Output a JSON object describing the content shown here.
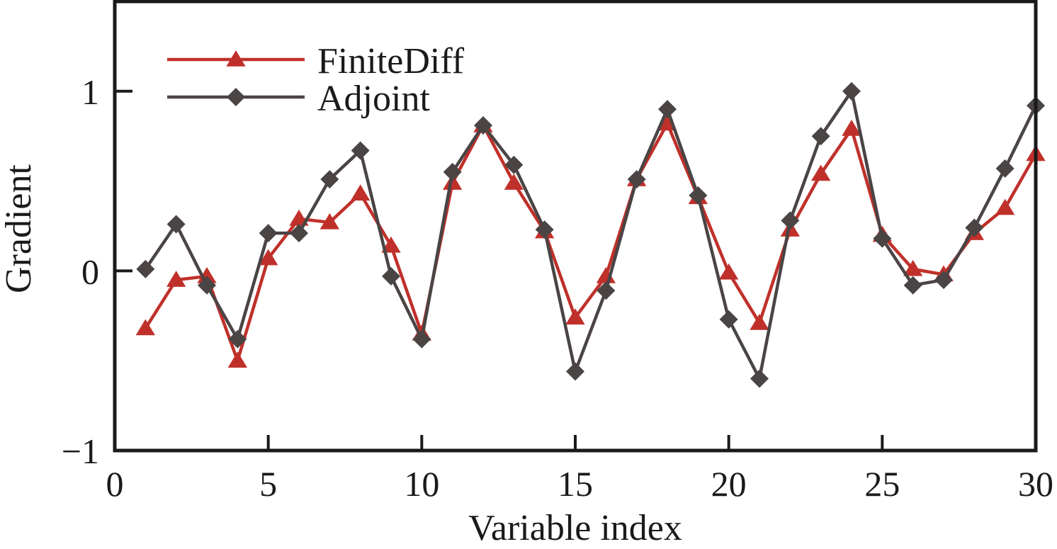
{
  "chart_data": {
    "type": "line",
    "title": "",
    "xlabel": "Variable index",
    "ylabel": "Gradient",
    "xlim": [
      0,
      30
    ],
    "ylim": [
      -1,
      1.5
    ],
    "xticks": [
      0,
      5,
      10,
      15,
      20,
      25,
      30
    ],
    "xtick_labels": [
      "0",
      "5",
      "10",
      "15",
      "20",
      "25",
      "30"
    ],
    "yticks": [
      -1,
      0,
      1
    ],
    "ytick_labels": [
      "−1",
      "0",
      "1"
    ],
    "grid": false,
    "legend_position": "top-left",
    "x": [
      1,
      2,
      3,
      4,
      5,
      6,
      7,
      8,
      9,
      10,
      11,
      12,
      13,
      14,
      15,
      16,
      17,
      18,
      19,
      20,
      21,
      22,
      23,
      24,
      25,
      26,
      27,
      28,
      29,
      30
    ],
    "series": [
      {
        "name": "FiniteDiff",
        "color": "#c0302a",
        "marker": "triangle",
        "values": [
          -0.32,
          -0.05,
          -0.03,
          -0.5,
          0.07,
          0.29,
          0.27,
          0.43,
          0.14,
          -0.35,
          0.49,
          0.81,
          0.49,
          0.22,
          -0.26,
          -0.03,
          0.51,
          0.82,
          0.41,
          -0.01,
          -0.29,
          0.23,
          0.54,
          0.79,
          0.2,
          0.01,
          -0.02,
          0.21,
          0.35,
          0.65
        ]
      },
      {
        "name": "Adjoint",
        "color": "#4a4444",
        "marker": "diamond",
        "values": [
          0.01,
          0.26,
          -0.08,
          -0.38,
          0.21,
          0.21,
          0.51,
          0.67,
          -0.03,
          -0.38,
          0.55,
          0.81,
          0.59,
          0.23,
          -0.56,
          -0.11,
          0.51,
          0.9,
          0.42,
          -0.27,
          -0.6,
          0.28,
          0.75,
          1.0,
          0.18,
          -0.08,
          -0.05,
          0.24,
          0.57,
          0.92
        ]
      }
    ]
  }
}
